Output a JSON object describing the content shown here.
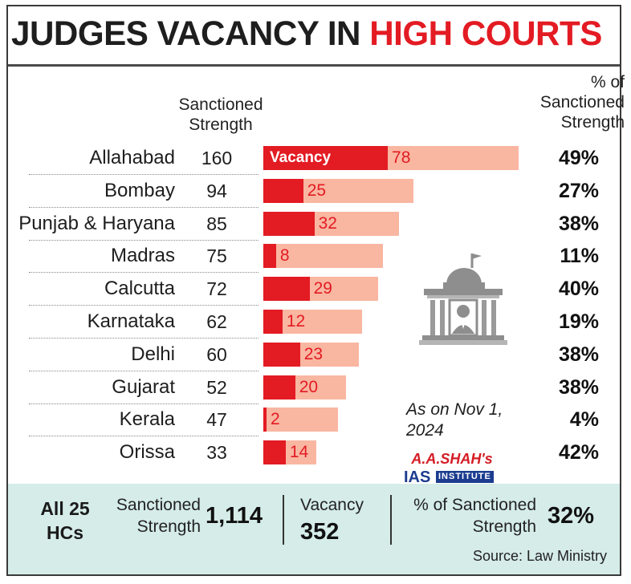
{
  "headline": {
    "part1": "JUDGES VACANCY IN ",
    "part2": "HIGH COURTS"
  },
  "colors": {
    "accent": "#e31b23",
    "sanctioned_bar": "#f9b6a1",
    "footer_bg": "#d5ece8"
  },
  "headers": {
    "sanctioned": [
      "Sanctioned",
      "Strength"
    ],
    "pct": [
      "% of",
      "Sanctioned",
      "Strength"
    ]
  },
  "vacancy_tag": "Vacancy",
  "icon": "court-building-icon",
  "chart_data": {
    "type": "bar",
    "orientation": "horizontal-stacked",
    "categories": [
      "Allahabad",
      "Bombay",
      "Punjab & Haryana",
      "Madras",
      "Calcutta",
      "Karnataka",
      "Delhi",
      "Gujarat",
      "Kerala",
      "Orissa"
    ],
    "series": [
      {
        "name": "Sanctioned Strength",
        "values": [
          160,
          94,
          85,
          75,
          72,
          62,
          60,
          52,
          47,
          33
        ]
      },
      {
        "name": "Vacancy",
        "values": [
          78,
          25,
          32,
          8,
          29,
          12,
          23,
          20,
          2,
          14
        ]
      }
    ],
    "pct_labels": [
      "49%",
      "27%",
      "38%",
      "11%",
      "40%",
      "19%",
      "38%",
      "38%",
      "4%",
      "42%"
    ],
    "title": "JUDGES VACANCY IN HIGH COURTS",
    "grid": false
  },
  "note": [
    "As on Nov 1,",
    "2024"
  ],
  "logo": {
    "line1": "A.A.SHAH's",
    "line2": "IAS",
    "line3": "INSTITUTE"
  },
  "footer": {
    "all": [
      "All 25",
      "HCs"
    ],
    "sanctioned_label": [
      "Sanctioned",
      "Strength"
    ],
    "sanctioned_value": "1,114",
    "vacancy_label": "Vacancy",
    "vacancy_value": "352",
    "pct_label": [
      "% of Sanctioned",
      "Strength"
    ],
    "pct_value": "32%",
    "source": "Source: Law Ministry"
  }
}
